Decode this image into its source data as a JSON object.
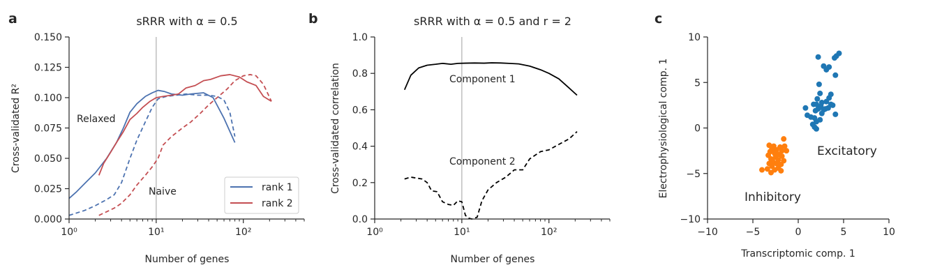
{
  "panels": [
    {
      "label": "a"
    },
    {
      "label": "b"
    },
    {
      "label": "c"
    }
  ],
  "chart_data": [
    {
      "type": "line",
      "title": "sRRR with α = 0.5",
      "xlabel": "Number of genes",
      "ylabel": "Cross-validated R²",
      "xscale": "log",
      "xlim": [
        1,
        500
      ],
      "ylim": [
        0,
        0.15
      ],
      "xticks": [
        1,
        10,
        100
      ],
      "xtick_labels": [
        "10⁰",
        "10¹",
        "10²"
      ],
      "yticks": [
        0,
        0.025,
        0.05,
        0.075,
        0.1,
        0.125,
        0.15
      ],
      "ytick_labels": [
        "0.000",
        "0.025",
        "0.050",
        "0.075",
        "0.100",
        "0.125",
        "0.150"
      ],
      "vline": 10,
      "annotations": [
        {
          "text": "Relaxed",
          "x": 1.15,
          "y": 0.08
        },
        {
          "text": "Naive",
          "x": 7.5,
          "y": 0.021
        }
      ],
      "legend_position": "lower-right",
      "series": [
        {
          "name": "rank 1",
          "color": "#4c72b0",
          "style": "solid",
          "x": [
            1.0,
            1.2,
            1.5,
            2.0,
            2.7,
            3.5,
            4.2,
            5.0,
            6.0,
            7.5,
            9.0,
            10.5,
            12.5,
            15,
            20,
            25,
            35,
            45,
            60,
            80
          ],
          "y": [
            0.017,
            0.022,
            0.029,
            0.038,
            0.05,
            0.063,
            0.075,
            0.088,
            0.095,
            0.101,
            0.104,
            0.106,
            0.105,
            0.103,
            0.102,
            0.103,
            0.104,
            0.1,
            0.083,
            0.063
          ]
        },
        {
          "name": "rank 1 (naive)",
          "color": "#4c72b0",
          "style": "dashed",
          "x": [
            1.0,
            1.5,
            2.0,
            2.7,
            3.3,
            4.0,
            5.0,
            6.0,
            7.5,
            9.0,
            10.5,
            13,
            17,
            22,
            30,
            40,
            50,
            60,
            70,
            80
          ],
          "y": [
            0.003,
            0.007,
            0.011,
            0.016,
            0.02,
            0.03,
            0.05,
            0.065,
            0.08,
            0.092,
            0.099,
            0.101,
            0.102,
            0.103,
            0.102,
            0.102,
            0.101,
            0.098,
            0.088,
            0.068
          ]
        },
        {
          "name": "rank 2",
          "color": "#c44e52",
          "style": "solid",
          "x": [
            2.2,
            2.5,
            3.0,
            3.5,
            4.2,
            5.0,
            6.0,
            7.0,
            8.5,
            10,
            12,
            15,
            18,
            22,
            28,
            35,
            42,
            55,
            70,
            90,
            110,
            140,
            170,
            210
          ],
          "y": [
            0.036,
            0.046,
            0.055,
            0.063,
            0.072,
            0.082,
            0.087,
            0.092,
            0.097,
            0.1,
            0.101,
            0.102,
            0.103,
            0.108,
            0.11,
            0.114,
            0.115,
            0.118,
            0.119,
            0.117,
            0.113,
            0.11,
            0.101,
            0.097
          ]
        },
        {
          "name": "rank 2 (naive)",
          "color": "#c44e52",
          "style": "dashed",
          "x": [
            2.2,
            2.7,
            3.3,
            4.0,
            5.0,
            6.0,
            7.5,
            9.0,
            10.5,
            12,
            15,
            20,
            25,
            32,
            40,
            50,
            65,
            80,
            100,
            120,
            140,
            170,
            210
          ],
          "y": [
            0.003,
            0.006,
            0.009,
            0.013,
            0.02,
            0.028,
            0.036,
            0.043,
            0.05,
            0.061,
            0.068,
            0.075,
            0.08,
            0.087,
            0.094,
            0.1,
            0.107,
            0.114,
            0.118,
            0.119,
            0.118,
            0.111,
            0.097
          ]
        }
      ]
    },
    {
      "type": "line",
      "title": "sRRR with α = 0.5 and r = 2",
      "xlabel": "Number of genes",
      "ylabel": "Cross-validated correlation",
      "xscale": "log",
      "xlim": [
        1,
        500
      ],
      "ylim": [
        0,
        1.0
      ],
      "xticks": [
        1,
        10,
        100
      ],
      "xtick_labels": [
        "10⁰",
        "10¹",
        "10²"
      ],
      "yticks": [
        0,
        0.2,
        0.4,
        0.6,
        0.8,
        1.0
      ],
      "ytick_labels": [
        "0.0",
        "0.2",
        "0.4",
        "0.6",
        "0.8",
        "1.0"
      ],
      "vline": 10,
      "annotations": [
        {
          "text": "Component 1",
          "x": 7,
          "y": 0.75
        },
        {
          "text": "Component 2",
          "x": 7,
          "y": 0.3
        }
      ],
      "series": [
        {
          "name": "Component 1",
          "color": "#000000",
          "style": "solid",
          "x": [
            2.2,
            2.6,
            3.2,
            4.0,
            5.0,
            6.0,
            7.5,
            9.0,
            11,
            14,
            18,
            22,
            28,
            35,
            45,
            60,
            80,
            100,
            130,
            170,
            210
          ],
          "y": [
            0.71,
            0.79,
            0.83,
            0.845,
            0.85,
            0.855,
            0.85,
            0.855,
            0.856,
            0.857,
            0.856,
            0.858,
            0.857,
            0.855,
            0.852,
            0.84,
            0.82,
            0.8,
            0.77,
            0.72,
            0.68
          ]
        },
        {
          "name": "Component 2",
          "color": "#000000",
          "style": "dashed",
          "x": [
            2.2,
            2.6,
            3.0,
            3.5,
            4.0,
            4.5,
            5.2,
            6.0,
            7.0,
            8.0,
            9.0,
            10,
            11,
            12,
            13,
            15,
            17,
            20,
            25,
            32,
            40,
            50,
            60,
            80,
            100,
            130,
            170,
            210
          ],
          "y": [
            0.22,
            0.23,
            0.225,
            0.22,
            0.2,
            0.155,
            0.15,
            0.095,
            0.08,
            0.075,
            0.1,
            0.095,
            0.02,
            0.005,
            0.0,
            0.01,
            0.1,
            0.16,
            0.2,
            0.23,
            0.27,
            0.27,
            0.33,
            0.37,
            0.38,
            0.41,
            0.44,
            0.48
          ]
        }
      ]
    },
    {
      "type": "scatter",
      "xlabel": "Transcriptomic comp. 1",
      "ylabel": "Electrophysiological comp. 1",
      "xlim": [
        -10,
        10
      ],
      "ylim": [
        -10,
        10
      ],
      "xticks": [
        -10,
        -5,
        0,
        5,
        10
      ],
      "xtick_labels": [
        "−10",
        "−5",
        "0",
        "5",
        "10"
      ],
      "yticks": [
        -10,
        -5,
        0,
        5,
        10
      ],
      "ytick_labels": [
        "−10",
        "−5",
        "0",
        "5",
        "10"
      ],
      "annotations": [
        {
          "text": "Excitatory",
          "x": 2.0,
          "y": -2.8
        },
        {
          "text": "Inhibitory",
          "x": -5.8,
          "y": -7.8
        }
      ],
      "series": [
        {
          "name": "Excitatory",
          "color": "#1f77b4",
          "points": [
            [
              2.2,
              7.8
            ],
            [
              4.2,
              7.9
            ],
            [
              4.5,
              8.2
            ],
            [
              4.0,
              7.7
            ],
            [
              2.8,
              6.8
            ],
            [
              3.1,
              6.4
            ],
            [
              3.4,
              6.7
            ],
            [
              4.1,
              5.8
            ],
            [
              2.3,
              4.8
            ],
            [
              2.4,
              3.8
            ],
            [
              3.6,
              3.7
            ],
            [
              3.4,
              3.3
            ],
            [
              2.1,
              3.2
            ],
            [
              2.6,
              2.8
            ],
            [
              3.1,
              2.9
            ],
            [
              1.7,
              2.6
            ],
            [
              2.0,
              2.6
            ],
            [
              2.5,
              2.4
            ],
            [
              3.6,
              2.6
            ],
            [
              3.8,
              2.5
            ],
            [
              2.2,
              2.1
            ],
            [
              2.8,
              2.0
            ],
            [
              3.0,
              2.1
            ],
            [
              3.3,
              2.2
            ],
            [
              0.8,
              2.2
            ],
            [
              1.9,
              1.9
            ],
            [
              2.6,
              1.6
            ],
            [
              4.1,
              1.5
            ],
            [
              1.0,
              1.4
            ],
            [
              1.4,
              1.2
            ],
            [
              1.8,
              1.1
            ],
            [
              2.4,
              0.9
            ],
            [
              2.0,
              0.7
            ],
            [
              1.6,
              0.4
            ],
            [
              1.8,
              0.1
            ],
            [
              2.0,
              -0.1
            ]
          ]
        },
        {
          "name": "Inhibitory",
          "color": "#ff7f0e",
          "points": [
            [
              -1.6,
              -1.2
            ],
            [
              -3.2,
              -1.9
            ],
            [
              -2.7,
              -2.0
            ],
            [
              -2.0,
              -2.1
            ],
            [
              -1.5,
              -2.0
            ],
            [
              -2.9,
              -2.3
            ],
            [
              -2.4,
              -2.4
            ],
            [
              -1.8,
              -2.5
            ],
            [
              -3.1,
              -2.6
            ],
            [
              -1.3,
              -2.5
            ],
            [
              -2.6,
              -2.8
            ],
            [
              -2.1,
              -2.9
            ],
            [
              -3.3,
              -3.0
            ],
            [
              -1.8,
              -3.1
            ],
            [
              -2.5,
              -3.2
            ],
            [
              -3.0,
              -3.4
            ],
            [
              -2.2,
              -3.5
            ],
            [
              -1.6,
              -3.6
            ],
            [
              -2.8,
              -3.7
            ],
            [
              -3.2,
              -3.9
            ],
            [
              -2.4,
              -3.9
            ],
            [
              -1.9,
              -4.0
            ],
            [
              -2.9,
              -4.2
            ],
            [
              -2.2,
              -4.4
            ],
            [
              -3.4,
              -4.5
            ],
            [
              -2.6,
              -4.6
            ],
            [
              -1.9,
              -4.7
            ],
            [
              -4.0,
              -4.6
            ],
            [
              -3.0,
              -4.9
            ]
          ]
        }
      ]
    }
  ]
}
